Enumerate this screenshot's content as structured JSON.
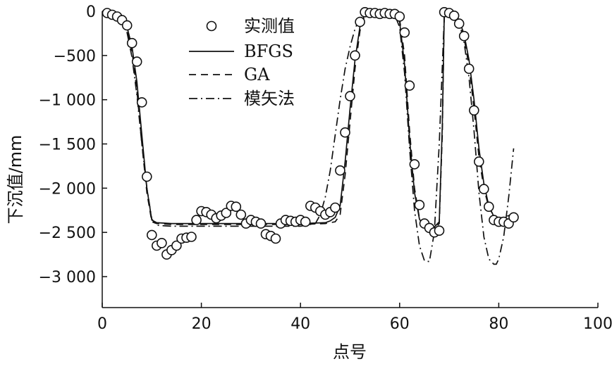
{
  "chart_data": {
    "type": "scatter",
    "title": "",
    "xlabel": "点号",
    "ylabel": "下沉值/mm",
    "xlim": [
      0,
      100
    ],
    "ylim": [
      -3350,
      0
    ],
    "x_ticks": [
      0,
      20,
      40,
      60,
      80,
      100
    ],
    "x_tick_labels": [
      "0",
      "20",
      "40",
      "60",
      "80",
      "100"
    ],
    "y_ticks": [
      0,
      -500,
      -1000,
      -1500,
      -2000,
      -2500,
      -3000
    ],
    "y_tick_labels": [
      "0",
      "−500",
      "−1 000",
      "−1 500",
      "−2 000",
      "−2 500",
      "−3 000"
    ],
    "legend_position": "top-center",
    "series": [
      {
        "name": "实测值",
        "kind": "markers",
        "marker": "circle",
        "x": [
          1,
          2,
          3,
          4,
          5,
          6,
          7,
          8,
          9,
          10,
          11,
          12,
          13,
          14,
          15,
          16,
          17,
          18,
          19,
          20,
          21,
          22,
          23,
          24,
          25,
          26,
          27,
          28,
          29,
          30,
          31,
          32,
          33,
          34,
          35,
          36,
          37,
          38,
          39,
          40,
          41,
          42,
          43,
          44,
          45,
          46,
          47,
          48,
          49,
          50,
          51,
          52,
          53,
          54,
          55,
          56,
          57,
          58,
          59,
          60,
          61,
          62,
          63,
          64,
          65,
          66,
          67,
          68,
          69,
          70,
          71,
          72,
          73,
          74,
          75,
          76,
          77,
          78,
          79,
          80,
          81,
          82,
          83
        ],
        "y": [
          -20,
          -40,
          -60,
          -100,
          -160,
          -360,
          -570,
          -1030,
          -1870,
          -2530,
          -2650,
          -2620,
          -2750,
          -2700,
          -2650,
          -2570,
          -2560,
          -2550,
          -2360,
          -2260,
          -2270,
          -2300,
          -2340,
          -2310,
          -2280,
          -2200,
          -2210,
          -2300,
          -2400,
          -2360,
          -2380,
          -2400,
          -2520,
          -2540,
          -2570,
          -2400,
          -2360,
          -2370,
          -2380,
          -2360,
          -2380,
          -2200,
          -2220,
          -2260,
          -2300,
          -2270,
          -2220,
          -1800,
          -1370,
          -960,
          -500,
          -120,
          -10,
          -20,
          -20,
          -30,
          -20,
          -30,
          -30,
          -60,
          -240,
          -840,
          -1730,
          -2190,
          -2400,
          -2450,
          -2500,
          -2480,
          -10,
          -20,
          -50,
          -140,
          -280,
          -650,
          -1120,
          -1700,
          -2010,
          -2210,
          -2360,
          -2380,
          -2380,
          -2400,
          -2330
        ]
      },
      {
        "name": "BFGS",
        "kind": "line",
        "dash": "solid",
        "x": [
          0,
          2,
          4,
          5,
          6,
          7,
          8,
          9,
          10,
          11,
          14,
          20,
          30,
          40,
          45,
          46,
          47,
          48,
          49,
          50,
          51,
          52,
          53,
          55,
          58,
          59,
          60,
          61,
          62,
          63,
          64,
          65,
          66,
          67,
          68,
          68.6,
          69,
          71,
          72,
          73,
          74,
          75,
          76,
          77,
          78,
          79,
          80,
          81,
          82
        ],
        "y": [
          0,
          -30,
          -90,
          -180,
          -400,
          -800,
          -1400,
          -2000,
          -2360,
          -2390,
          -2400,
          -2400,
          -2400,
          -2400,
          -2390,
          -2370,
          -2330,
          -2200,
          -1700,
          -1100,
          -550,
          -170,
          -30,
          -10,
          -10,
          -30,
          -120,
          -600,
          -1450,
          -2050,
          -2350,
          -2440,
          -2460,
          -2440,
          -2380,
          -1300,
          -30,
          -30,
          -100,
          -260,
          -550,
          -1000,
          -1550,
          -1950,
          -2200,
          -2320,
          -2370,
          -2380,
          -2390
        ]
      },
      {
        "name": "GA",
        "kind": "line",
        "dash": "10 7",
        "x": [
          0,
          2,
          4,
          5,
          6,
          7,
          8,
          9,
          10,
          11,
          14,
          20,
          30,
          40,
          45,
          47,
          48,
          49,
          50,
          51,
          52,
          53,
          55,
          58,
          59,
          60,
          61,
          62,
          63,
          64,
          65,
          66,
          67,
          68,
          68.6,
          69,
          71,
          72,
          73,
          74,
          75,
          76,
          77,
          78,
          79,
          80,
          81,
          82,
          83
        ],
        "y": [
          0,
          -30,
          -100,
          -200,
          -450,
          -900,
          -1500,
          -2050,
          -2380,
          -2400,
          -2410,
          -2410,
          -2410,
          -2410,
          -2400,
          -2380,
          -2300,
          -1850,
          -1250,
          -650,
          -220,
          -40,
          -10,
          -10,
          -20,
          -90,
          -500,
          -1350,
          -2000,
          -2340,
          -2450,
          -2480,
          -2460,
          -2400,
          -1400,
          -30,
          -40,
          -120,
          -300,
          -620,
          -1100,
          -1650,
          -2000,
          -2220,
          -2310,
          -2340,
          -2330,
          -2310,
          -2290
        ]
      },
      {
        "name": "模矢法",
        "kind": "line",
        "dash": "12 5 2 5",
        "x": [
          0,
          2,
          4,
          5,
          6,
          7,
          8,
          9,
          10,
          11,
          14,
          20,
          30,
          40,
          43,
          44,
          45,
          46,
          47,
          48,
          49,
          50,
          51,
          52,
          53,
          55,
          58,
          59,
          60,
          61,
          62,
          63,
          64,
          65,
          66,
          67,
          68,
          69,
          71,
          72,
          73,
          74,
          75,
          76,
          77,
          78,
          79,
          79.5,
          80,
          81,
          82,
          83
        ],
        "y": [
          0,
          -40,
          -120,
          -240,
          -520,
          -950,
          -1500,
          -2000,
          -2350,
          -2420,
          -2430,
          -2430,
          -2430,
          -2430,
          -2400,
          -2300,
          -2100,
          -1800,
          -1400,
          -1000,
          -650,
          -400,
          -200,
          -70,
          -20,
          -5,
          -5,
          -40,
          -180,
          -700,
          -1550,
          -2250,
          -2650,
          -2820,
          -2830,
          -2500,
          -1500,
          -60,
          -30,
          -120,
          -350,
          -750,
          -1350,
          -2050,
          -2550,
          -2800,
          -2860,
          -2860,
          -2800,
          -2550,
          -2100,
          -1550
        ]
      }
    ]
  }
}
